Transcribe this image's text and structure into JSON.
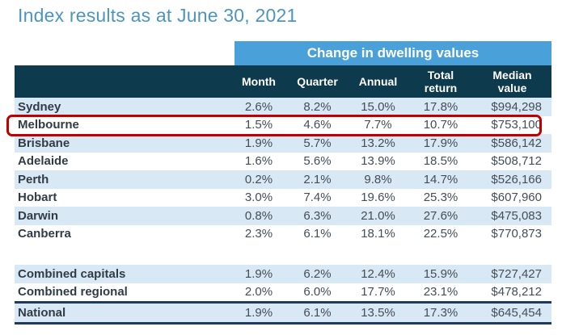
{
  "title": "Index results as at June 30, 2021",
  "chart_data": {
    "type": "table",
    "title": "Index results as at June 30, 2021",
    "band_label": "Change in dwelling values",
    "columns": [
      "Month",
      "Quarter",
      "Annual",
      "Total return",
      "Median value"
    ],
    "rows": [
      {
        "label": "Sydney",
        "values": [
          "2.6%",
          "8.2%",
          "15.0%",
          "17.8%",
          "$994,298"
        ]
      },
      {
        "label": "Melbourne",
        "values": [
          "1.5%",
          "4.6%",
          "7.7%",
          "10.7%",
          "$753,100"
        ]
      },
      {
        "label": "Brisbane",
        "values": [
          "1.9%",
          "5.7%",
          "13.2%",
          "17.9%",
          "$586,142"
        ]
      },
      {
        "label": "Adelaide",
        "values": [
          "1.6%",
          "5.6%",
          "13.9%",
          "18.5%",
          "$508,712"
        ]
      },
      {
        "label": "Perth",
        "values": [
          "0.2%",
          "2.1%",
          "9.8%",
          "14.7%",
          "$526,166"
        ]
      },
      {
        "label": "Hobart",
        "values": [
          "3.0%",
          "7.4%",
          "19.6%",
          "25.3%",
          "$607,960"
        ]
      },
      {
        "label": "Darwin",
        "values": [
          "0.8%",
          "6.3%",
          "21.0%",
          "27.6%",
          "$475,083"
        ]
      },
      {
        "label": "Canberra",
        "values": [
          "2.3%",
          "6.1%",
          "18.1%",
          "22.5%",
          "$770,873"
        ]
      },
      {
        "label": "Combined capitals",
        "values": [
          "1.9%",
          "6.2%",
          "12.4%",
          "15.9%",
          "$727,427"
        ]
      },
      {
        "label": "Combined regional",
        "values": [
          "2.0%",
          "6.0%",
          "17.7%",
          "23.1%",
          "$478,212"
        ]
      },
      {
        "label": "National",
        "values": [
          "1.9%",
          "6.1%",
          "13.5%",
          "17.3%",
          "$645,454"
        ]
      }
    ],
    "highlighted_row": "Melbourne",
    "layout": {
      "stripe_pattern": "alternating",
      "legend": "none",
      "grid": "off"
    }
  },
  "colors": {
    "title_blue": "#4D95C0",
    "band_blue": "#4AA0D8",
    "header_teal": "#0E3A4D",
    "row_stripe_blue": "#D8E8F5",
    "highlight_red": "#C00000",
    "rule_navy": "#1E3A5F",
    "text_dark": "#313C46",
    "value_text": "#444E57"
  }
}
